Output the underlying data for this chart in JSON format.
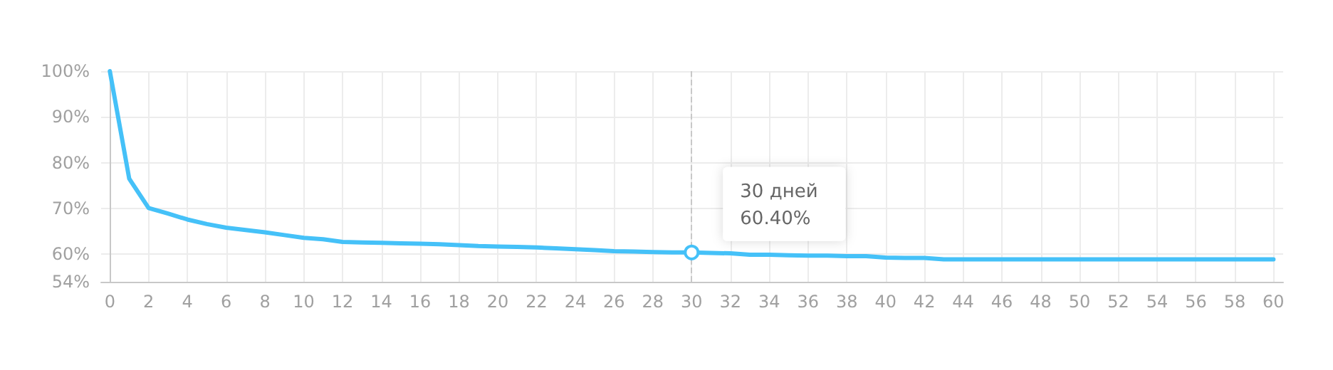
{
  "chart_data": {
    "type": "line",
    "x": [
      0,
      1,
      2,
      3,
      4,
      5,
      6,
      7,
      8,
      9,
      10,
      11,
      12,
      13,
      14,
      15,
      16,
      17,
      18,
      19,
      20,
      21,
      22,
      23,
      24,
      25,
      26,
      27,
      28,
      29,
      30,
      31,
      32,
      33,
      34,
      35,
      36,
      37,
      38,
      39,
      40,
      41,
      42,
      43,
      44,
      45,
      46,
      47,
      48,
      49,
      50,
      51,
      52,
      53,
      54,
      55,
      56,
      57,
      58,
      59,
      60
    ],
    "series": [
      {
        "color": "#45c1f8",
        "values": [
          100,
          76.5,
          70.1,
          68.9,
          67.6,
          66.6,
          65.8,
          65.3,
          64.8,
          64.2,
          63.6,
          63.3,
          62.7,
          62.6,
          62.5,
          62.4,
          62.3,
          62.2,
          62.0,
          61.8,
          61.7,
          61.6,
          61.5,
          61.3,
          61.1,
          60.9,
          60.7,
          60.6,
          60.5,
          60.4,
          60.4,
          60.3,
          60.2,
          59.9,
          59.9,
          59.8,
          59.7,
          59.7,
          59.6,
          59.6,
          59.3,
          59.2,
          59.2,
          58.9,
          58.9,
          58.9,
          58.9,
          58.9,
          58.9,
          58.9,
          58.9,
          58.9,
          58.9,
          58.9,
          58.9,
          58.9,
          58.9,
          58.9,
          58.9,
          58.9,
          58.9
        ]
      }
    ],
    "xlim": [
      -0.45,
      60.5
    ],
    "xticks": [
      0,
      2,
      4,
      6,
      8,
      10,
      12,
      14,
      16,
      18,
      20,
      22,
      24,
      26,
      28,
      30,
      32,
      34,
      36,
      38,
      40,
      42,
      44,
      46,
      48,
      50,
      52,
      54,
      56,
      58,
      60
    ],
    "ylim": [
      54,
      100
    ],
    "yticks": [
      {
        "value": 54,
        "label": "54%"
      },
      {
        "value": 60,
        "label": "60%"
      },
      {
        "value": 70,
        "label": "70%"
      },
      {
        "value": 80,
        "label": "80%"
      },
      {
        "value": 90,
        "label": "90%"
      },
      {
        "value": 100,
        "label": "100%"
      }
    ],
    "grid": true,
    "line_style": "solid",
    "marker": "none",
    "ref_lines": [
      {
        "axis": "x",
        "value": 30,
        "color": "#c8c8c8",
        "line_style": "dashed"
      }
    ],
    "annotations": [
      {
        "text": "30 дней\n60.40%",
        "x": 30,
        "y": 60.4
      }
    ]
  }
}
